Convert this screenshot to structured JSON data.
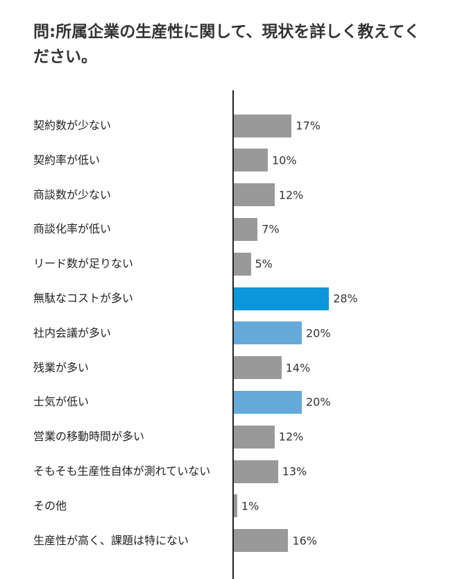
{
  "chart_data": {
    "type": "bar",
    "orientation": "horizontal",
    "title": "問:所属企業の生産性に関して、現状を詳しく教えてください。",
    "categories": [
      "契約数が少ない",
      "契約率が低い",
      "商談数が少ない",
      "商談化率が低い",
      "リード数が足りない",
      "無駄なコストが多い",
      "社内会議が多い",
      "残業が多い",
      "士気が低い",
      "営業の移動時間が多い",
      "そもそも生産性自体が測れていない",
      "その他",
      "生産性が高く、課題は特にない"
    ],
    "values": [
      17,
      10,
      12,
      7,
      5,
      28,
      20,
      14,
      20,
      12,
      13,
      1,
      16
    ],
    "value_labels": [
      "17%",
      "10%",
      "12%",
      "7%",
      "5%",
      "28%",
      "20%",
      "14%",
      "20%",
      "12%",
      "13%",
      "1%",
      "16%"
    ],
    "colors": [
      "#999999",
      "#999999",
      "#999999",
      "#999999",
      "#999999",
      "#0b97da",
      "#65a9d8",
      "#999999",
      "#65a9d8",
      "#999999",
      "#999999",
      "#999999",
      "#999999"
    ]
  }
}
